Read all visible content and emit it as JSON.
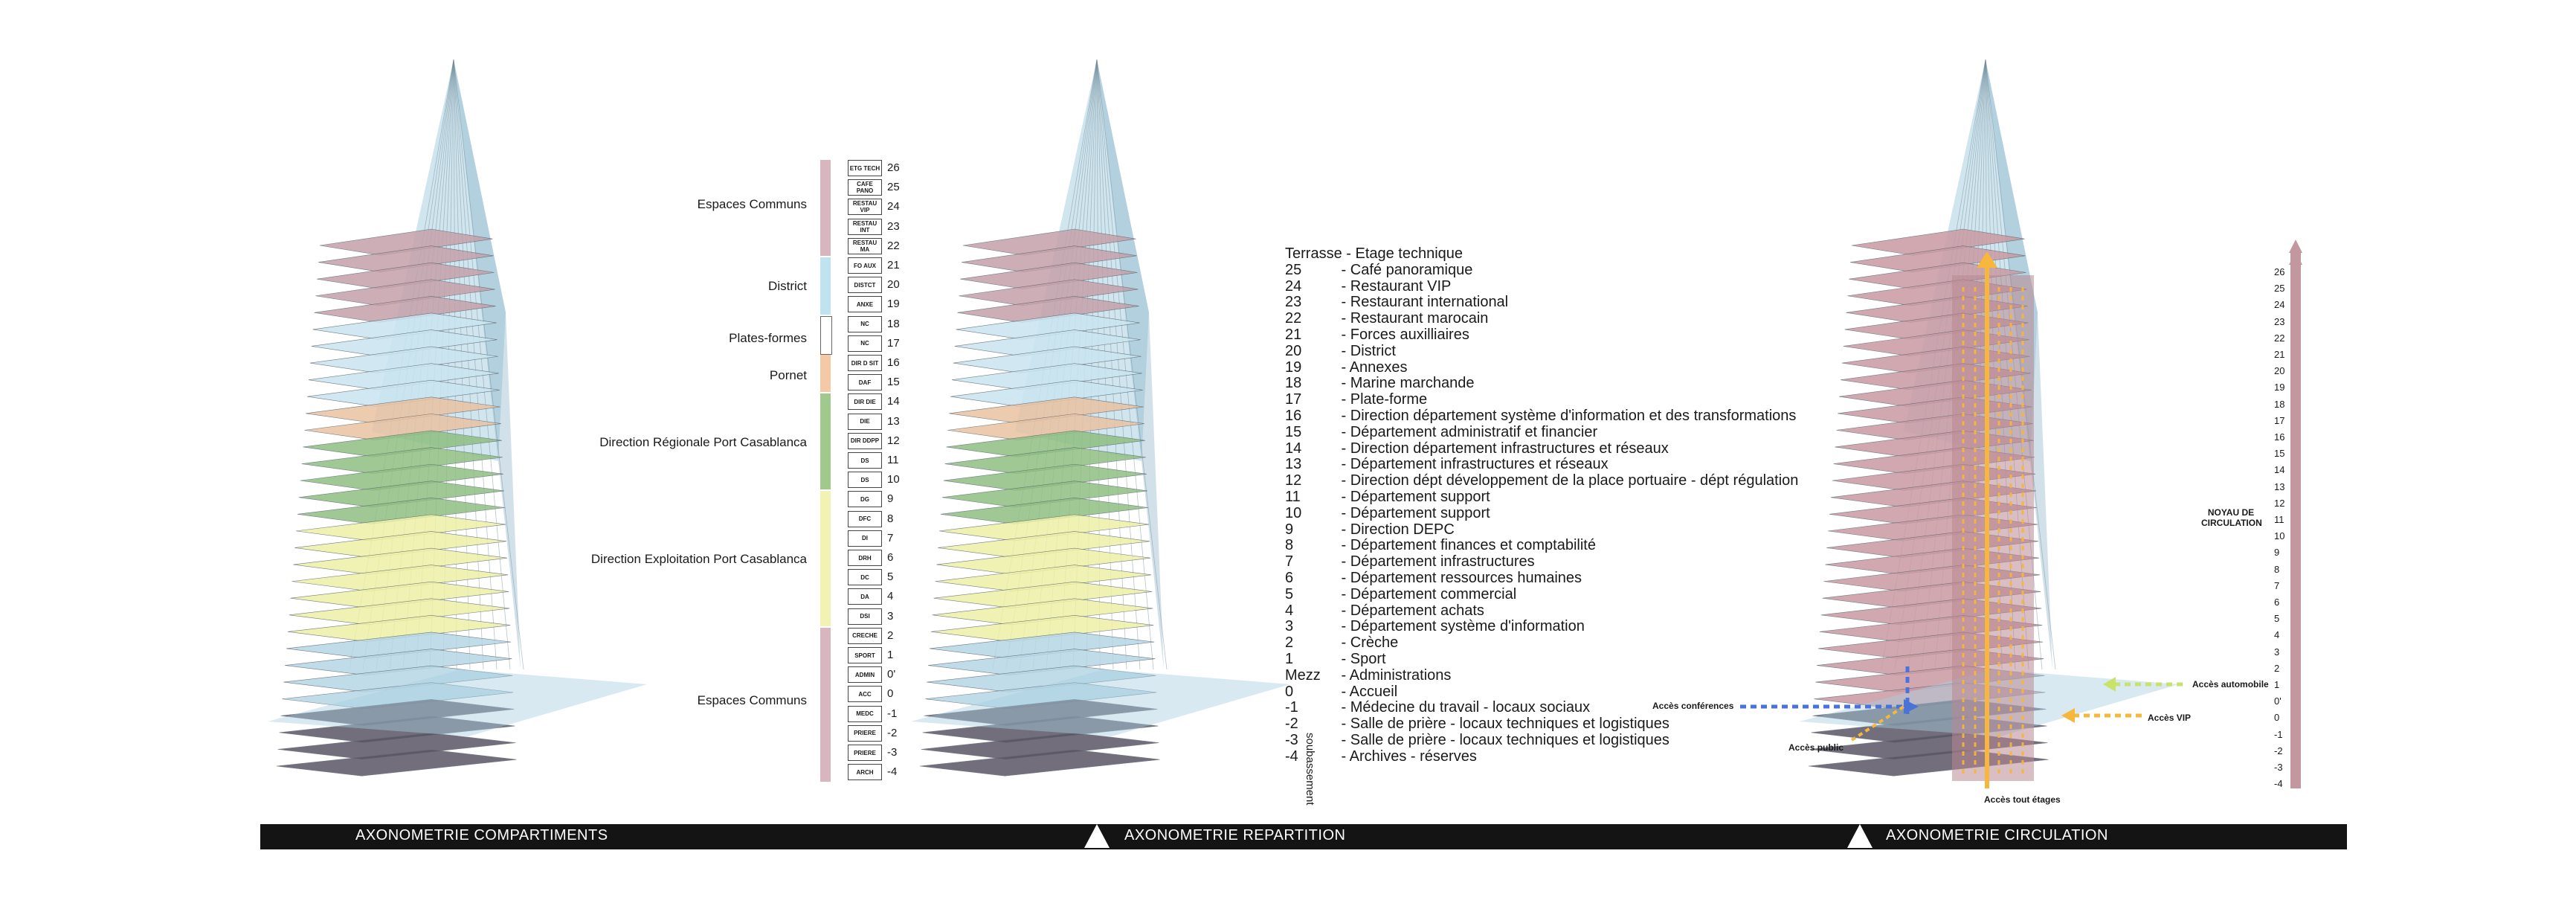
{
  "panels": {
    "compartiments": {
      "title": "AXONOMETRIE COMPARTIMENTS",
      "zones": [
        {
          "label": "Espaces Communs",
          "color": "#d9b6bf"
        },
        {
          "label": "District",
          "color": "#bfe3ef"
        },
        {
          "label": "Plates-formes",
          "color": "#ffffff"
        },
        {
          "label": "Pornet",
          "color": "#f6c9a6"
        },
        {
          "label": "Direction Régionale Port Casablanca",
          "color": "#9fc98d"
        },
        {
          "label": "Direction Exploitation Port Casablanca",
          "color": "#f2f2b3"
        },
        {
          "label": "Espaces Communs",
          "color": "#d9b6bf"
        }
      ],
      "floors": [
        {
          "code": "ETG TECH",
          "num": "26"
        },
        {
          "code": "CAFE PANO",
          "num": "25"
        },
        {
          "code": "RESTAU VIP",
          "num": "24"
        },
        {
          "code": "RESTAU INT",
          "num": "23"
        },
        {
          "code": "RESTAU MA",
          "num": "22"
        },
        {
          "code": "FO AUX",
          "num": "21"
        },
        {
          "code": "DISTCT",
          "num": "20"
        },
        {
          "code": "ANXE",
          "num": "19"
        },
        {
          "code": "NC",
          "num": "18"
        },
        {
          "code": "NC",
          "num": "17"
        },
        {
          "code": "DIR D SIT",
          "num": "16"
        },
        {
          "code": "DAF",
          "num": "15"
        },
        {
          "code": "DIR DIE",
          "num": "14"
        },
        {
          "code": "DIE",
          "num": "13"
        },
        {
          "code": "DIR DDPP",
          "num": "12"
        },
        {
          "code": "DS",
          "num": "11"
        },
        {
          "code": "DS",
          "num": "10"
        },
        {
          "code": "DG",
          "num": "9"
        },
        {
          "code": "DFC",
          "num": "8"
        },
        {
          "code": "DI",
          "num": "7"
        },
        {
          "code": "DRH",
          "num": "6"
        },
        {
          "code": "DC",
          "num": "5"
        },
        {
          "code": "DA",
          "num": "4"
        },
        {
          "code": "DSI",
          "num": "3"
        },
        {
          "code": "CRECHE",
          "num": "2"
        },
        {
          "code": "SPORT",
          "num": "1"
        },
        {
          "code": "ADMIN",
          "num": "0'"
        },
        {
          "code": "ACC",
          "num": "0"
        },
        {
          "code": "MEDC",
          "num": "-1"
        },
        {
          "code": "PRIERE",
          "num": "-2"
        },
        {
          "code": "PRIERE",
          "num": "-3"
        },
        {
          "code": "ARCH",
          "num": "-4"
        }
      ]
    },
    "repartition": {
      "title": "AXONOMETRIE REPARTITION",
      "rows": [
        {
          "num": "Terrasse",
          "text": "- Etage technique"
        },
        {
          "num": "25",
          "text": "- Café panoramique"
        },
        {
          "num": "24",
          "text": "- Restaurant VIP"
        },
        {
          "num": "23",
          "text": "- Restaurant international"
        },
        {
          "num": "22",
          "text": "- Restaurant marocain"
        },
        {
          "num": "21",
          "text": "- Forces auxilliaires"
        },
        {
          "num": "20",
          "text": "- District"
        },
        {
          "num": "19",
          "text": "- Annexes"
        },
        {
          "num": "18",
          "text": "- Marine marchande"
        },
        {
          "num": "17",
          "text": "- Plate-forme"
        },
        {
          "num": "16",
          "text": "- Direction département système d'information et des transformations"
        },
        {
          "num": "15",
          "text": "- Département administratif et financier"
        },
        {
          "num": "14",
          "text": "- Direction département infrastructures et réseaux"
        },
        {
          "num": "13",
          "text": "- Département infrastructures et réseaux"
        },
        {
          "num": "12",
          "text": "- Direction dépt développement de la place portuaire - dépt régulation"
        },
        {
          "num": "11",
          "text": "- Département support"
        },
        {
          "num": "10",
          "text": "- Département support"
        },
        {
          "num": "9",
          "text": "- Direction DEPC"
        },
        {
          "num": "8",
          "text": "- Département finances et comptabilité"
        },
        {
          "num": "7",
          "text": "- Département infrastructures"
        },
        {
          "num": "6",
          "text": "- Département ressources humaines"
        },
        {
          "num": "5",
          "text": "- Département commercial"
        },
        {
          "num": "4",
          "text": "- Département achats"
        },
        {
          "num": "3",
          "text": "- Département système d'information"
        },
        {
          "num": "2",
          "text": "- Crèche"
        },
        {
          "num": "1",
          "text": "- Sport"
        },
        {
          "num": "Mezz",
          "text": "- Administrations"
        },
        {
          "num": "0",
          "text": "- Accueil"
        },
        {
          "num": "-1",
          "text": "- Médecine du travail - locaux sociaux"
        },
        {
          "num": "-2",
          "text": "- Salle de prière - locaux techniques et logistiques"
        },
        {
          "num": "-3",
          "text": "- Salle de prière - locaux techniques et logistiques"
        },
        {
          "num": "-4",
          "text": "- Archives -  réserves"
        }
      ],
      "side_label": "soubassement"
    },
    "circulation": {
      "title": "AXONOMETRIE CIRCULATION",
      "noyau_label_1": "NOYAU DE",
      "noyau_label_2": "CIRCULATION",
      "levels": [
        "26",
        "25",
        "24",
        "23",
        "22",
        "21",
        "20",
        "19",
        "18",
        "17",
        "16",
        "15",
        "14",
        "13",
        "12",
        "11",
        "10",
        "9",
        "8",
        "7",
        "6",
        "5",
        "4",
        "3",
        "2",
        "1",
        "0'",
        "0",
        "-1",
        "-2",
        "-3",
        "-4"
      ],
      "access": {
        "conferences": "Accès conférences",
        "public": "Accès public",
        "automobile": "Accès automobile",
        "vip": "Accès VIP",
        "tous_etages": "Accès tout étages"
      },
      "colors": {
        "core": "#b98991",
        "arrow_main": "#f6b73c",
        "arrow_blue": "#4a72d8",
        "arrow_green": "#c9e26a"
      }
    }
  },
  "colors": {
    "glass": "#a9cfe0",
    "glass_dark": "#5c7f93",
    "rose": "#c5a0aa",
    "green": "#8fbf82",
    "yellow": "#eef0a6",
    "peach": "#e9c2a2",
    "bar": "#141414"
  }
}
